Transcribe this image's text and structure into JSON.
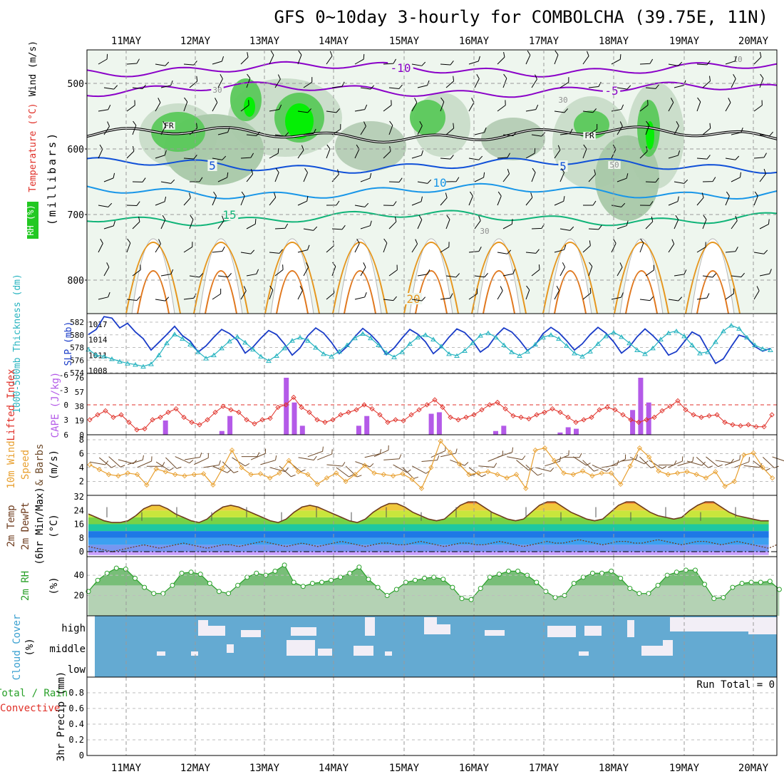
{
  "chart_data": {
    "type": "line",
    "title": "GFS 0~10day 3-hourly for COMBOLCHA (39.75E, 11N)",
    "dates": [
      "11MAY",
      "12MAY",
      "13MAY",
      "14MAY",
      "15MAY",
      "16MAY",
      "17MAY",
      "18MAY",
      "19MAY",
      "20MAY"
    ],
    "panels": {
      "upper_air": {
        "ylabel_rh": "RH (%)",
        "ylabel_temp": "Temperature (°C)",
        "ylabel_wind": "Wind (m/s)",
        "ylabel_pressure": "(millibars)",
        "yticks": [
          "500",
          "600",
          "700",
          "800"
        ],
        "ylim": [
          450,
          850
        ],
        "contour_labels": [
          "-10",
          "-5",
          "FR",
          "FR",
          "5",
          "5",
          "10",
          "15",
          "20",
          "30",
          "30",
          "30",
          "50",
          "10"
        ],
        "isotherms": [
          {
            "name": "-10",
            "color": "#8a00c8",
            "level": 478
          },
          {
            "name": "-5",
            "color": "#8a00c8",
            "level": 510
          },
          {
            "name": "FR",
            "color": "#000000",
            "level": 578
          },
          {
            "name": "5",
            "color": "#1050d8",
            "level": 625
          },
          {
            "name": "10",
            "color": "#1896e8",
            "level": 665
          },
          {
            "name": "15",
            "color": "#10b478",
            "level": 705
          },
          {
            "name": "20",
            "color": "#e6961e",
            "level": 760
          }
        ]
      },
      "slp_thickness": {
        "ylabel_left": "1000-500mb Thickness (dm)",
        "ylabel_right": "SLP (mb)",
        "thickness_ticks": [
          "582",
          "580",
          "578",
          "576",
          "574"
        ],
        "slp_ticks": [
          "1017",
          "1014",
          "1011",
          "1008"
        ],
        "series": [
          {
            "name": "SLP (mb)",
            "color": "#1a3cc8",
            "values": [
              1015.0,
              1016.0,
              1018.5,
              1018.2,
              1016.3,
              1017.2,
              1015.5,
              1014.2,
              1012.0,
              1013.5,
              1015.0,
              1016.6,
              1014.8,
              1013.7,
              1011.6,
              1012.8,
              1014.5,
              1016.0,
              1015.2,
              1013.9,
              1011.4,
              1012.6,
              1014.3,
              1015.8,
              1015.0,
              1013.2,
              1011.0,
              1012.4,
              1014.8,
              1016.3,
              1015.3,
              1013.5,
              1011.3,
              1012.7,
              1014.6,
              1016.2,
              1015.0,
              1013.4,
              1011.1,
              1012.4,
              1014.3,
              1016.0,
              1015.1,
              1013.6,
              1011.3,
              1012.6,
              1014.5,
              1016.1,
              1015.4,
              1013.8,
              1011.6,
              1012.7,
              1014.8,
              1016.3,
              1015.5,
              1013.9,
              1011.9,
              1013.0,
              1015.2,
              1016.4,
              1015.4,
              1013.8,
              1012.0,
              1013.2,
              1015.0,
              1016.4,
              1015.3,
              1013.6,
              1011.4,
              1012.6,
              1014.6,
              1016.1,
              1014.8,
              1013.2,
              1011.0,
              1011.7,
              1013.6,
              1015.5,
              1014.7,
              1012.0,
              1009.4,
              1010.3,
              1012.7,
              1014.9,
              1014.4,
              1012.7,
              1011.8,
              1012.3
            ]
          },
          {
            "name": "1000-500mb Thickness (dm)",
            "color": "#28b4c0",
            "values": [
              577.7,
              576.8,
              576.6,
              576.2,
              575.8,
              575.5,
              575.3,
              575.0,
              575.4,
              576.8,
              578.7,
              580.1,
              579.4,
              578.5,
              577.3,
              576.3,
              576.8,
              577.9,
              579.0,
              579.7,
              578.8,
              577.7,
              576.6,
              575.9,
              576.7,
              577.9,
              579.1,
              579.6,
              579.1,
              578.0,
              577.0,
              576.6,
              577.4,
              578.4,
              579.5,
              580.2,
              579.5,
              578.4,
              577.2,
              576.5,
              577.3,
              578.6,
              579.6,
              580.0,
              579.3,
              578.2,
              577.0,
              576.7,
              577.5,
              578.7,
              579.9,
              580.3,
              579.6,
              578.4,
              577.3,
              576.7,
              577.4,
              578.5,
              579.6,
              580.0,
              579.4,
              578.3,
              577.1,
              576.6,
              577.4,
              578.6,
              579.8,
              580.4,
              579.7,
              578.7,
              577.6,
              577.0,
              577.9,
              579.3,
              580.3,
              580.6,
              579.8,
              578.4,
              577.1,
              577.3,
              578.9,
              580.6,
              581.5,
              581.0,
              579.6,
              578.4,
              577.8,
              577.6
            ]
          }
        ]
      },
      "li_cape": {
        "ylabel_left": "Lifted Index",
        "ylabel_right": "CAPE (J/kg)",
        "li_ticks": [
          "-6",
          "-3",
          "0",
          "3",
          "6"
        ],
        "cape_ticks": [
          "76",
          "57",
          "38",
          "19",
          "0"
        ],
        "series": [
          {
            "name": "Lifted Index",
            "color": "#e03028",
            "values": [
              3.0,
              2.0,
              1.2,
              2.5,
              2.0,
              3.5,
              5.0,
              4.8,
              3.0,
              2.5,
              1.5,
              0.8,
              2.5,
              3.5,
              4.0,
              3.0,
              1.5,
              0.3,
              1.0,
              1.5,
              3.0,
              3.8,
              3.0,
              2.7,
              0.5,
              0.0,
              -1.5,
              0.5,
              1.5,
              3.0,
              3.5,
              3.0,
              2.0,
              1.5,
              1.0,
              0.0,
              0.8,
              2.0,
              3.5,
              3.0,
              3.2,
              2.0,
              1.0,
              0.0,
              -1.0,
              0.5,
              2.5,
              3.0,
              2.5,
              2.0,
              1.0,
              0.0,
              -0.5,
              0.8,
              2.2,
              2.5,
              2.8,
              2.0,
              1.5,
              0.8,
              1.5,
              2.5,
              3.5,
              3.0,
              2.5,
              1.0,
              0.5,
              1.0,
              2.0,
              3.0,
              3.5,
              3.0,
              2.5,
              1.2,
              0.3,
              -0.8,
              1.0,
              2.0,
              2.5,
              2.2,
              2.0,
              3.5,
              4.0,
              4.2,
              4.0,
              4.4,
              4.4,
              2.0
            ]
          },
          {
            "name": "CAPE (J/kg)",
            "color": "#b45ae8",
            "bars": [
              {
                "i": 9,
                "v": 19
              },
              {
                "i": 16,
                "v": 5
              },
              {
                "i": 17,
                "v": 25
              },
              {
                "i": 24,
                "v": 76
              },
              {
                "i": 25,
                "v": 43
              },
              {
                "i": 26,
                "v": 12
              },
              {
                "i": 33,
                "v": 12
              },
              {
                "i": 34,
                "v": 25
              },
              {
                "i": 42,
                "v": 28
              },
              {
                "i": 43,
                "v": 30
              },
              {
                "i": 50,
                "v": 5
              },
              {
                "i": 51,
                "v": 12
              },
              {
                "i": 58,
                "v": 3
              },
              {
                "i": 59,
                "v": 10
              },
              {
                "i": 60,
                "v": 8
              },
              {
                "i": 67,
                "v": 33
              },
              {
                "i": 68,
                "v": 76
              },
              {
                "i": 69,
                "v": 43
              }
            ]
          }
        ]
      },
      "wind10m": {
        "ylabel": "10m Wind Speed & Barbs (m/s)",
        "yticks": [
          "8",
          "6",
          "4",
          "2"
        ],
        "ylim": [
          0,
          8
        ],
        "series": [
          {
            "name": "10m Wind Speed",
            "color": "#e8a030",
            "values": [
              4.4,
              3.7,
              3.0,
              2.8,
              3.2,
              3.0,
              1.5,
              3.8,
              3.4,
              3.0,
              2.8,
              3.0,
              3.1,
              1.5,
              3.9,
              6.5,
              4.0,
              3.0,
              3.1,
              2.5,
              3.2,
              5.0,
              3.4,
              3.0,
              1.6,
              2.5,
              3.2,
              2.0,
              3.0,
              4.3,
              3.2,
              3.0,
              2.8,
              3.1,
              2.3,
              1.0,
              4.0,
              7.8,
              6.2,
              4.5,
              3.0,
              3.2,
              3.4,
              3.0,
              2.5,
              3.0,
              1.0,
              6.5,
              6.8,
              5.0,
              3.2,
              3.0,
              3.5,
              2.8,
              3.2,
              3.2,
              1.6,
              4.2,
              6.8,
              5.5,
              3.5,
              3.0,
              3.2,
              3.4,
              3.0,
              2.5,
              3.4,
              1.3,
              2.0,
              5.8,
              6.1,
              4.0,
              2.5
            ]
          }
        ]
      },
      "temp2m": {
        "ylabel": "2m Temp 2m DewPt (6hr Min/Max) (°C)",
        "yticks": [
          "32",
          "24",
          "16",
          "8",
          "0"
        ],
        "ylim": [
          -2,
          32
        ],
        "series": [
          {
            "name": "2m Temp",
            "color": "#6e3c1e",
            "values": [
              22,
              20,
              18,
              17,
              17,
              18,
              21,
              25,
              27,
              27,
              25,
              22,
              20,
              18,
              17,
              19,
              23,
              26,
              27,
              26,
              24,
              22,
              20,
              18,
              17,
              19,
              23,
              26,
              27,
              26,
              24,
              22,
              20,
              18,
              17,
              19,
              23,
              26,
              28,
              28,
              26,
              23,
              21,
              19,
              18,
              19,
              23,
              27,
              29,
              29,
              26,
              23,
              21,
              19,
              18,
              19,
              23,
              27,
              29,
              29,
              26,
              23,
              21,
              19,
              18,
              19,
              23,
              27,
              29,
              29,
              26,
              23,
              21,
              20,
              19,
              20,
              24,
              27,
              29,
              29,
              26,
              23,
              21,
              20,
              19,
              18,
              18
            ]
          },
          {
            "name": "2m DewPt",
            "color": "#6e3c1e",
            "values": [
              3,
              2,
              1,
              0,
              1,
              2,
              3,
              4,
              3,
              2,
              3,
              4,
              5,
              4,
              3,
              2,
              3,
              4,
              4,
              3,
              4,
              5,
              6,
              5,
              4,
              3,
              4,
              5,
              4,
              3,
              4,
              5,
              6,
              5,
              4,
              3,
              4,
              5,
              5,
              4,
              4,
              5,
              6,
              5,
              4,
              3,
              4,
              5,
              5,
              4,
              4,
              5,
              6,
              5,
              4,
              3,
              4,
              5,
              6,
              5,
              5,
              6,
              7,
              6,
              5,
              4,
              5,
              6,
              6,
              5,
              5,
              6,
              7,
              6,
              5,
              4,
              5,
              6,
              6,
              5,
              4,
              5,
              6,
              5,
              4,
              3,
              2,
              4
            ]
          }
        ]
      },
      "rh2m": {
        "ylabel": "2m RH (%)",
        "yticks": [
          "40",
          "20"
        ],
        "ylim": [
          0,
          60
        ],
        "series": [
          {
            "name": "2m RH",
            "color": "#28a028",
            "values": [
              24,
              35,
              42,
              47,
              46,
              37,
              28,
              22,
              22,
              30,
              42,
              43,
              41,
              32,
              24,
              22,
              30,
              38,
              42,
              40,
              44,
              50,
              33,
              29,
              32,
              33,
              35,
              38,
              42,
              48,
              36,
              28,
              20,
              26,
              33,
              35,
              37,
              38,
              36,
              28,
              17,
              16,
              27,
              38,
              41,
              44,
              44,
              40,
              33,
              24,
              18,
              20,
              32,
              38,
              42,
              42,
              44,
              37,
              27,
              22,
              22,
              30,
              40,
              43,
              45,
              45,
              31,
              17,
              18,
              28,
              32,
              33,
              33,
              34,
              26
            ]
          }
        ]
      },
      "cloud": {
        "ylabel": "Cloud Cover (%)",
        "levels": [
          "high",
          "middle",
          "low"
        ]
      },
      "precip": {
        "ylabel_left": "Total / Rain",
        "ylabel_right": "Convective",
        "ylabel_units": "3hr Precip (mm)",
        "yticks": [
          "0.8",
          "0.6",
          "0.4",
          "0.2",
          "0"
        ],
        "ylim": [
          0,
          0.95
        ],
        "run_total": "Run Total = 0",
        "values": []
      }
    }
  }
}
